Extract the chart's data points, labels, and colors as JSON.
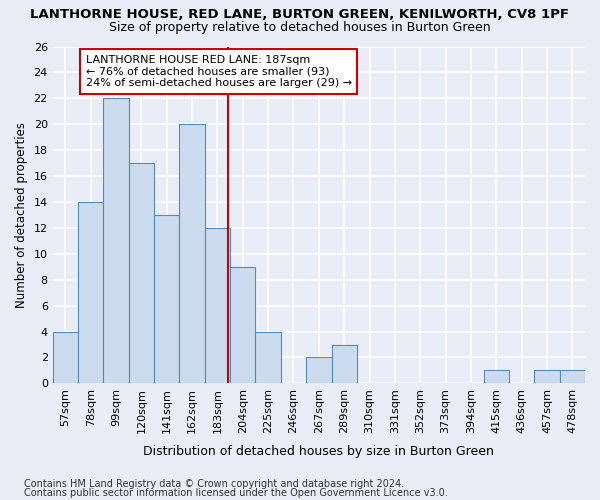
{
  "title1": "LANTHORNE HOUSE, RED LANE, BURTON GREEN, KENILWORTH, CV8 1PF",
  "title2": "Size of property relative to detached houses in Burton Green",
  "xlabel": "Distribution of detached houses by size in Burton Green",
  "ylabel": "Number of detached properties",
  "categories": [
    "57sqm",
    "78sqm",
    "99sqm",
    "120sqm",
    "141sqm",
    "162sqm",
    "183sqm",
    "204sqm",
    "225sqm",
    "246sqm",
    "267sqm",
    "289sqm",
    "310sqm",
    "331sqm",
    "352sqm",
    "373sqm",
    "394sqm",
    "415sqm",
    "436sqm",
    "457sqm",
    "478sqm"
  ],
  "values": [
    4,
    14,
    22,
    17,
    13,
    20,
    12,
    9,
    4,
    0,
    2,
    3,
    0,
    0,
    0,
    0,
    0,
    1,
    0,
    1,
    1
  ],
  "bar_color": "#ccdcee",
  "bar_edge_color": "#5588bb",
  "background_color": "#e8edf8",
  "grid_color": "#ffffff",
  "ref_line_color": "#cc0000",
  "ref_line_x": 6.43,
  "annotation_text": "LANTHORNE HOUSE RED LANE: 187sqm\n← 76% of detached houses are smaller (93)\n24% of semi-detached houses are larger (29) →",
  "annotation_box_color": "#ffffff",
  "annotation_box_edge": "#cc0000",
  "footer1": "Contains HM Land Registry data © Crown copyright and database right 2024.",
  "footer2": "Contains public sector information licensed under the Open Government Licence v3.0.",
  "ylim": [
    0,
    26
  ],
  "yticks": [
    0,
    2,
    4,
    6,
    8,
    10,
    12,
    14,
    16,
    18,
    20,
    22,
    24,
    26
  ],
  "title1_fontsize": 9.5,
  "title2_fontsize": 9,
  "tick_fontsize": 8,
  "ylabel_fontsize": 8.5,
  "xlabel_fontsize": 9,
  "footer_fontsize": 7,
  "annotation_fontsize": 8
}
